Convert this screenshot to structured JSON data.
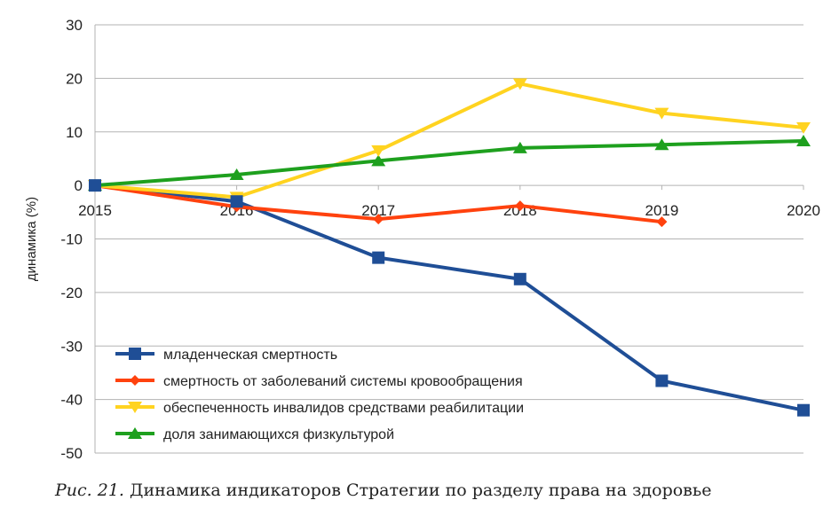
{
  "chart_data": {
    "type": "line",
    "x": [
      "2015",
      "2016",
      "2017",
      "2018",
      "2019",
      "2020"
    ],
    "ylabel": "динамика (%)",
    "ylim": [
      -50,
      30
    ],
    "yticks": [
      30,
      20,
      10,
      0,
      -10,
      -20,
      -30,
      -40,
      -50
    ],
    "grid": "horizontal",
    "legend_position": "bottom-left",
    "series": [
      {
        "name": "младенческая смертность",
        "color": "#1f4e96",
        "marker": "square",
        "values": [
          0,
          -3,
          -13.5,
          -17.5,
          -36.5,
          -42
        ]
      },
      {
        "name": "смертность от заболеваний системы кровообращения",
        "color": "#ff420e",
        "marker": "diamond",
        "values": [
          0,
          -4,
          -6.3,
          -3.8,
          -6.8,
          null
        ]
      },
      {
        "name": "обеспеченность инвалидов средствами реабилитации",
        "color": "#ffd320",
        "marker": "triangle-down",
        "values": [
          0,
          -2.2,
          6.5,
          19,
          13.5,
          10.8
        ]
      },
      {
        "name": "доля занимающихся физкультурой",
        "color": "#1ea01e",
        "marker": "triangle-up",
        "values": [
          0,
          2,
          4.6,
          7,
          7.6,
          8.3
        ]
      }
    ]
  },
  "caption": {
    "label": "Рис. 21.",
    "text": " Динамика индикаторов Стратегии по разделу права на здоровье"
  }
}
